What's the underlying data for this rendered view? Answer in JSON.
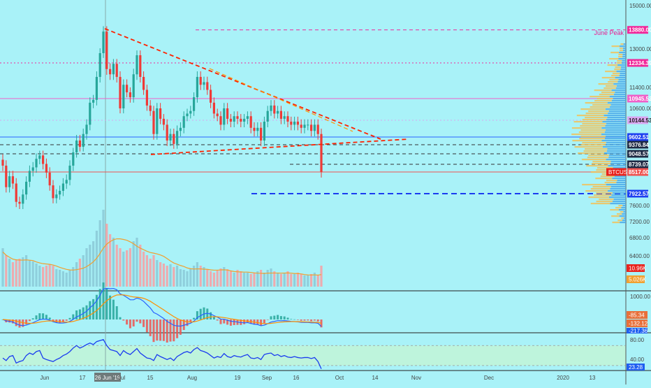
{
  "chart_data": {
    "type": "candlestick",
    "symbol": "BTCUSD",
    "x_ticks": [
      "Jun",
      "17",
      "26 Jun '19",
      "Jul",
      "15",
      "Aug",
      "19",
      "Sep",
      "16",
      "Oct",
      "14",
      "Nov",
      "Dec",
      "2020",
      "13"
    ],
    "y_ticks": [
      "15000.00",
      "13000.00",
      "11400.00",
      "10600.00",
      "7600.00",
      "7200.00",
      "6800.00",
      "6400.00"
    ],
    "price_levels": [
      {
        "label": "13880.00",
        "value": 13880,
        "color": "#f0289a",
        "style": "dashed"
      },
      {
        "label": "12334.39",
        "value": 12334.39,
        "color": "#f0289a",
        "style": "dotted"
      },
      {
        "label": "10945.52",
        "value": 10945.52,
        "color": "#f060c8",
        "style": "solid"
      },
      {
        "label": "10144.53",
        "value": 10144.53,
        "color": "#d9a6f0",
        "style": "dotted"
      },
      {
        "label": "9602.51",
        "value": 9602.51,
        "color": "#2962ff",
        "style": "solid"
      },
      {
        "label": "9376.84",
        "value": 9376.84,
        "color": "#333333",
        "style": "dashed"
      },
      {
        "label": "9048.57",
        "value": 9048.57,
        "color": "#333333",
        "style": "dashed"
      },
      {
        "label": "8739.07",
        "value": 8739.07,
        "color": "#333333",
        "style": "dashed"
      },
      {
        "label": "8517.00",
        "value": 8517.0,
        "color": "#ef5350",
        "style": "solid"
      },
      {
        "label": "7922.57",
        "value": 7922.57,
        "color": "#1a3cf0",
        "style": "dashed"
      }
    ],
    "annotations": [
      "June Peak"
    ],
    "last_price": {
      "symbol": "BTCUSD",
      "value": "8517.00"
    },
    "volume": {
      "last_label": "10.96K",
      "ma_label": "5.026K"
    },
    "macd": {
      "ticks": [
        "1000.00",
        "-85.34",
        "-132.12",
        "-217.36"
      ]
    },
    "rsi": {
      "ticks": [
        "80.00",
        "40.00",
        "23.28"
      ],
      "band": [
        30,
        70
      ]
    },
    "series": [
      {
        "name": "BTCUSD",
        "close": [
          8700,
          8100,
          8400,
          8200,
          7700,
          7650,
          7900,
          8250,
          8550,
          8650,
          8900,
          9000,
          8750,
          8500,
          8150,
          7800,
          7900,
          8000,
          8200,
          8300,
          8700,
          9100,
          9500,
          9300,
          9700,
          10000,
          10800,
          10900,
          11800,
          12800,
          13800,
          12100,
          11900,
          12300,
          11800,
          10600,
          11500,
          11200,
          11000,
          11900,
          12700,
          11800,
          11300,
          10700,
          10500,
          9700,
          10600,
          10200,
          10000,
          9500,
          9700,
          9400,
          9800,
          9900,
          10300,
          10400,
          10500,
          11000,
          11800,
          11500,
          11600,
          11300,
          10800,
          10400,
          10300,
          10000,
          10600,
          10200,
          10100,
          10300,
          10200,
          10100,
          10200,
          10300,
          9900,
          9800,
          9900,
          9500,
          10100,
          10500,
          10700,
          10400,
          10500,
          10200,
          10300,
          10100,
          10000,
          10100,
          10000,
          9900,
          10000,
          10000,
          9800,
          10000,
          9700,
          8517
        ],
        "volume": [
          55,
          45,
          40,
          35,
          38,
          40,
          42,
          45,
          38,
          36,
          33,
          30,
          28,
          30,
          32,
          30,
          25,
          24,
          22,
          20,
          24,
          28,
          35,
          40,
          45,
          55,
          60,
          65,
          80,
          95,
          110,
          90,
          75,
          70,
          60,
          55,
          50,
          52,
          55,
          65,
          70,
          60,
          50,
          45,
          40,
          45,
          38,
          35,
          33,
          30,
          32,
          28,
          30,
          25,
          24,
          22,
          26,
          30,
          35,
          30,
          28,
          25,
          22,
          20,
          24,
          26,
          28,
          25,
          22,
          20,
          24,
          22,
          20,
          20,
          18,
          20,
          22,
          24,
          20,
          24,
          26,
          22,
          20,
          18,
          20,
          22,
          18,
          18,
          20,
          18,
          16,
          17,
          18,
          20,
          16,
          30
        ],
        "rsi": [
          45,
          40,
          48,
          50,
          35,
          38,
          40,
          50,
          55,
          52,
          58,
          60,
          45,
          42,
          40,
          38,
          42,
          45,
          50,
          53,
          58,
          65,
          70,
          65,
          68,
          72,
          75,
          72,
          78,
          80,
          82,
          70,
          62,
          60,
          58,
          50,
          60,
          55,
          52,
          58,
          64,
          55,
          50,
          45,
          44,
          40,
          52,
          48,
          45,
          42,
          45,
          40,
          48,
          52,
          56,
          58,
          55,
          62,
          66,
          60,
          58,
          55,
          50,
          45,
          48,
          46,
          54,
          48,
          46,
          50,
          48,
          47,
          50,
          52,
          45,
          44,
          46,
          42,
          52,
          54,
          55,
          50,
          52,
          48,
          50,
          47,
          46,
          48,
          46,
          45,
          46,
          46,
          44,
          46,
          38,
          23.28
        ]
      }
    ]
  }
}
